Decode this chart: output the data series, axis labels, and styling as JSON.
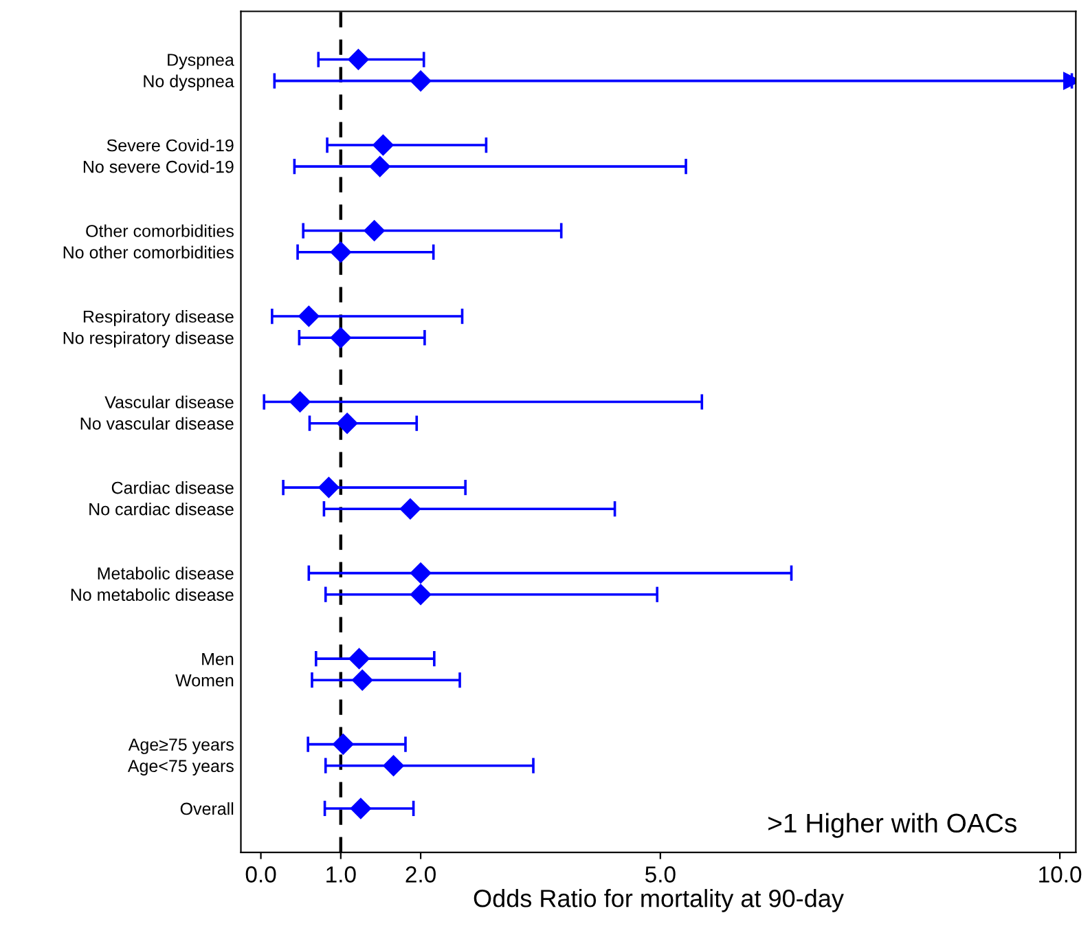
{
  "chart_data": {
    "type": "scatter",
    "orientation": "horizontal",
    "xlabel": "Odds Ratio for mortality at 90-day",
    "categories": [
      "Dyspnea",
      "No dyspnea",
      null,
      null,
      "Severe Covid-19",
      "No severe Covid-19",
      null,
      null,
      "Other comorbidities",
      "No other comorbidities",
      null,
      null,
      "Respiratory disease",
      "No respiratory disease",
      null,
      null,
      "Vascular disease",
      "No vascular disease",
      null,
      null,
      "Cardiac disease",
      "No cardiac disease",
      null,
      null,
      "Metabolic disease",
      "No metabolic disease",
      null,
      null,
      "Men",
      "Women",
      null,
      null,
      "Age≥75 years",
      "Age<75 years",
      null,
      "Overall"
    ],
    "series": [
      {
        "color": "#0000ff",
        "values": [
          1.22,
          2.0,
          null,
          null,
          1.53,
          1.49,
          null,
          null,
          1.42,
          1.0,
          null,
          null,
          0.6,
          1.0,
          null,
          null,
          0.49,
          1.08,
          null,
          null,
          0.85,
          1.87,
          null,
          null,
          2.0,
          2.0,
          null,
          null,
          1.23,
          1.27,
          null,
          null,
          1.03,
          1.66,
          null,
          1.25
        ],
        "errors": [
          [
            0.72,
            2.04
          ],
          [
            0.17,
            10.15
          ],
          null,
          null,
          [
            0.83,
            2.82
          ],
          [
            0.42,
            5.32
          ],
          null,
          null,
          [
            0.53,
            3.76
          ],
          [
            0.46,
            2.16
          ],
          null,
          null,
          [
            0.14,
            2.52
          ],
          [
            0.48,
            2.05
          ],
          null,
          null,
          [
            0.04,
            5.52
          ],
          [
            0.61,
            1.95
          ],
          null,
          null,
          [
            0.28,
            2.56
          ],
          [
            0.79,
            4.43
          ],
          null,
          null,
          [
            0.6,
            6.64
          ],
          [
            0.81,
            4.96
          ],
          null,
          null,
          [
            0.69,
            2.17
          ],
          [
            0.64,
            2.49
          ],
          null,
          null,
          [
            0.59,
            1.81
          ],
          [
            0.81,
            3.41
          ],
          null,
          [
            0.8,
            1.91
          ]
        ]
      }
    ],
    "marker": "diamond",
    "xlim": [
      -0.25,
      10.2
    ],
    "xticks": [
      {
        "value": 0,
        "label": "0.0"
      },
      {
        "value": 1,
        "label": "1.0"
      },
      {
        "value": 2,
        "label": "2.0"
      },
      {
        "value": 5,
        "label": "5.0"
      },
      {
        "value": 10,
        "label": "10.0"
      }
    ],
    "ref_lines": [
      {
        "axis": "x",
        "value": 1,
        "color": "#000000",
        "line_style": "dashed"
      }
    ],
    "annotations": [
      ">1 Higher with OACs"
    ],
    "grid": false,
    "legend": false
  }
}
